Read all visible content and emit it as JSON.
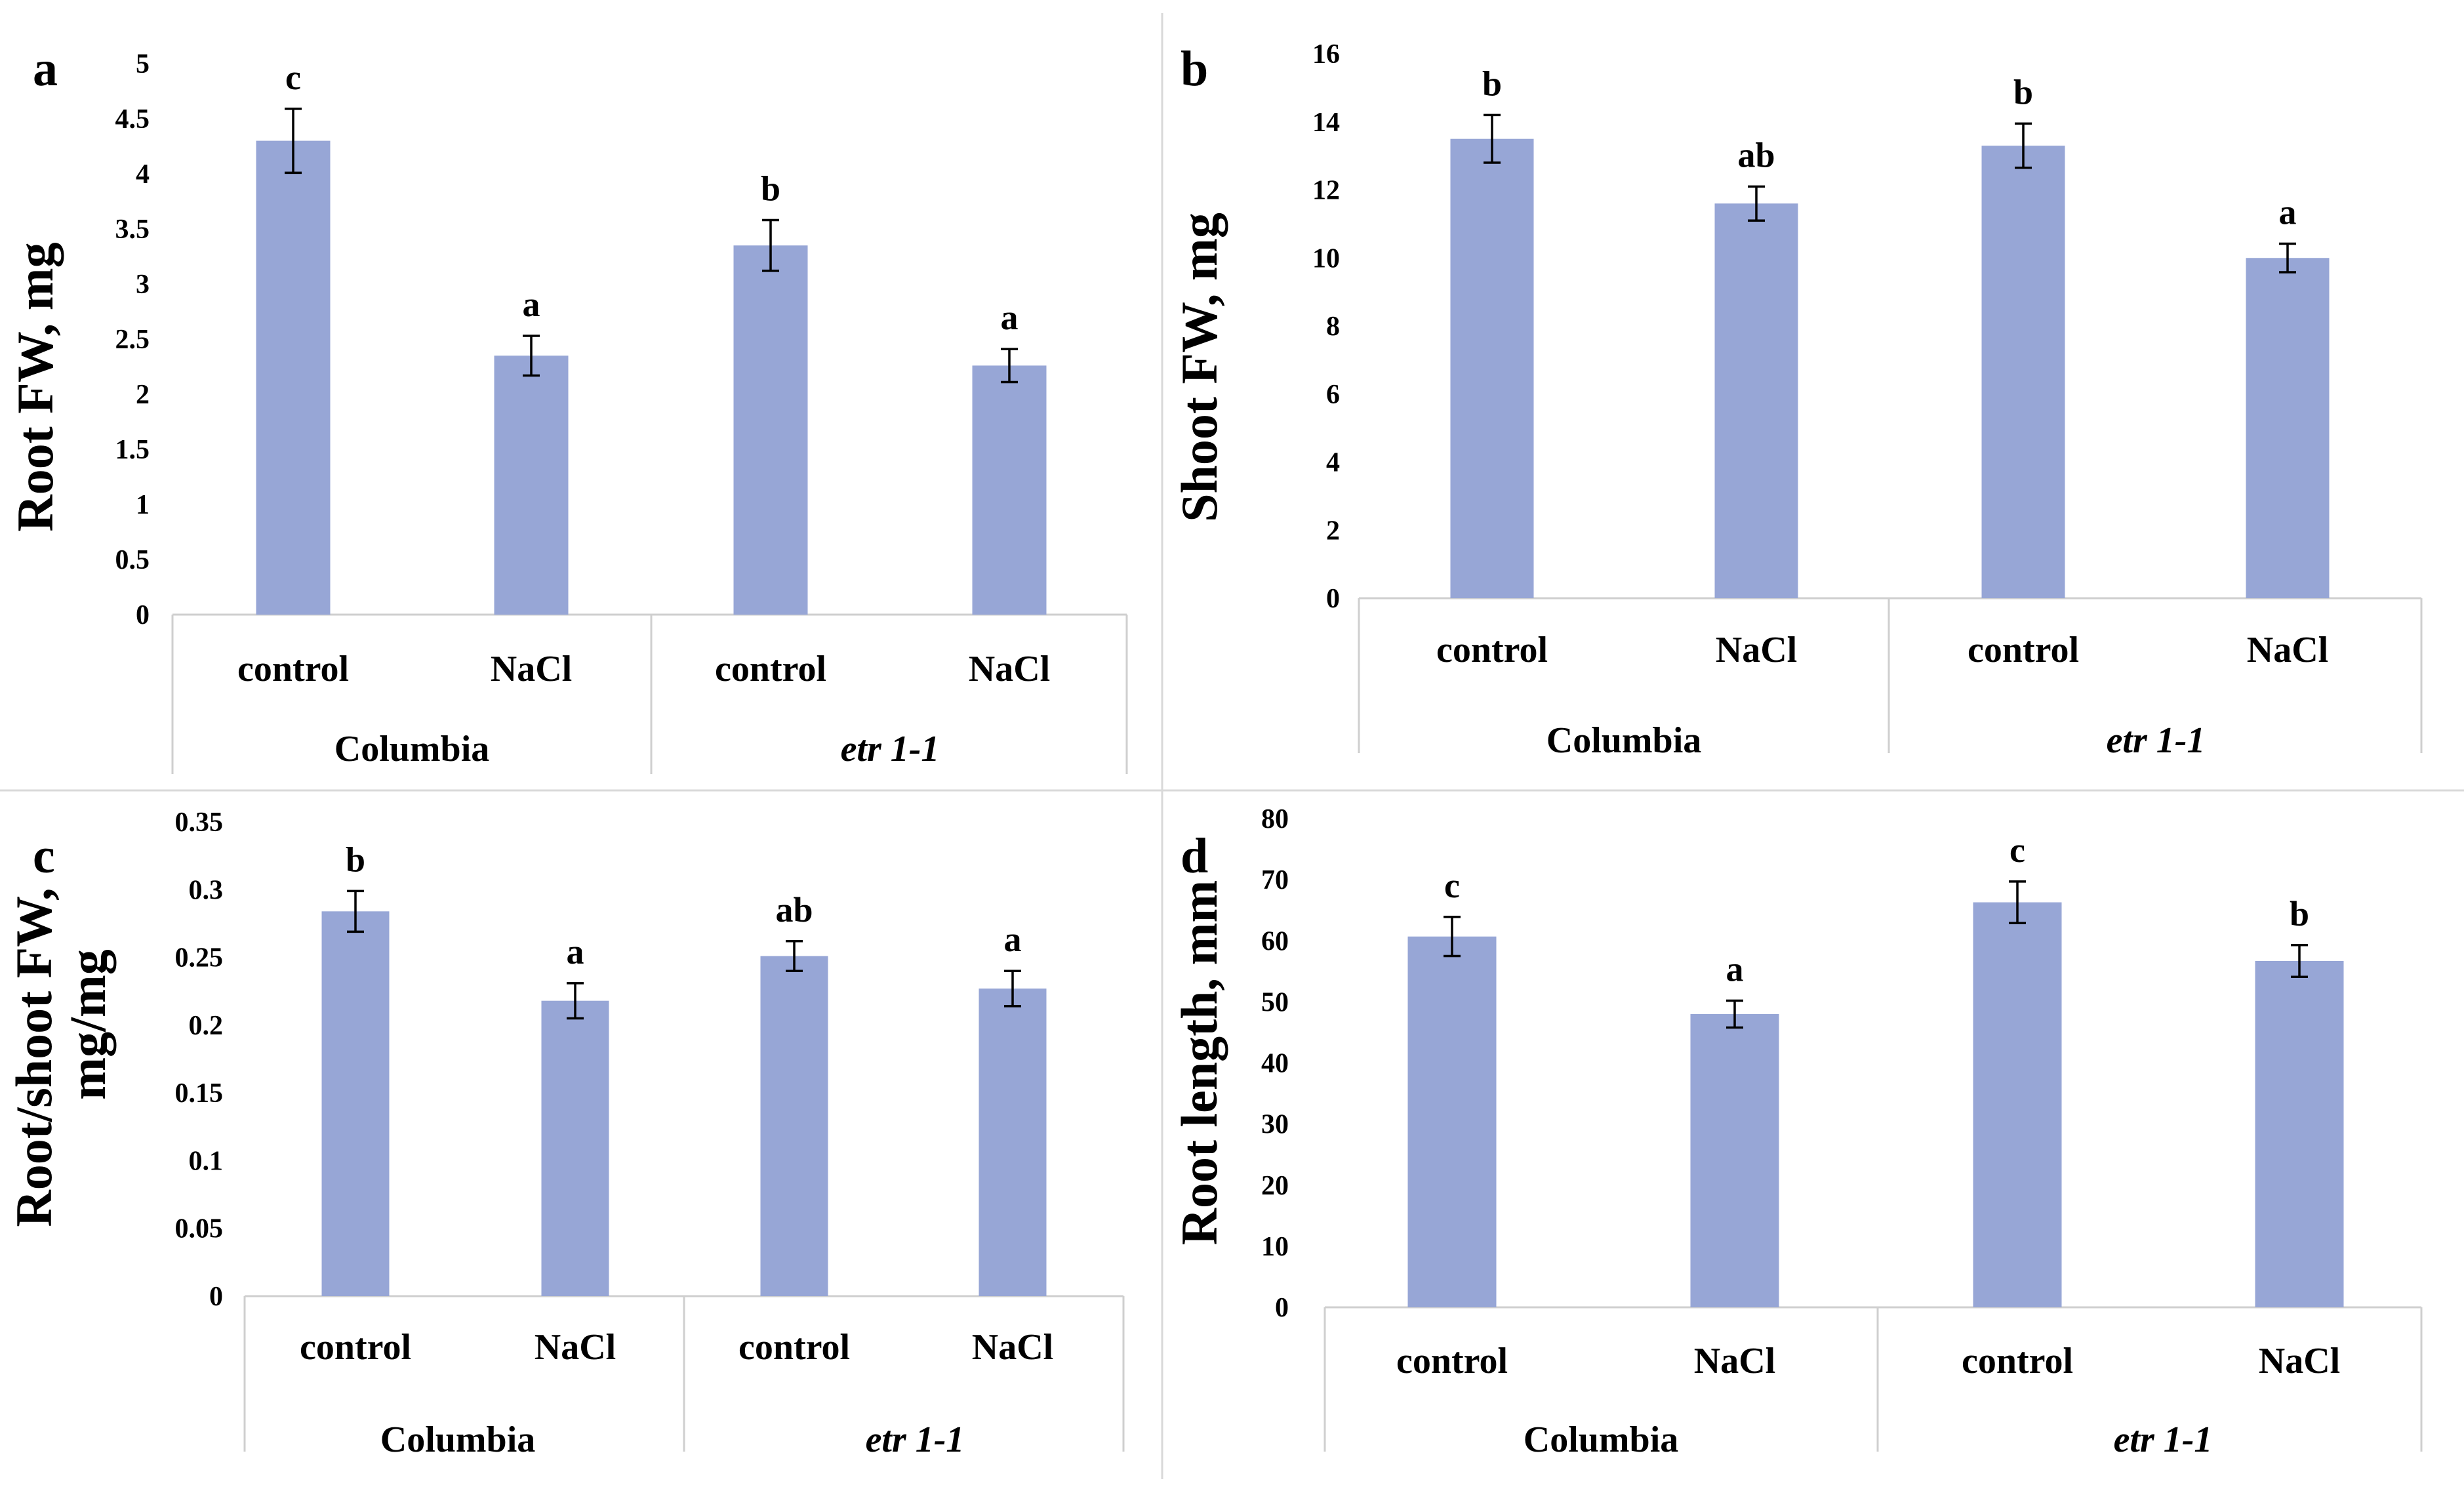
{
  "bar_color": "#97a6d6",
  "chart_data": [
    {
      "type": "bar",
      "panel": "a",
      "ylabel": "Root FW, mg",
      "ylim": [
        0,
        5
      ],
      "yticks": [
        "0",
        "0.5",
        "1",
        "1.5",
        "2",
        "2.5",
        "3",
        "3.5",
        "4",
        "4.5",
        "5"
      ],
      "categories": [
        "control",
        "NaCl",
        "control",
        "NaCl"
      ],
      "groups": [
        "Columbia",
        "etr 1-1"
      ],
      "values": [
        4.3,
        2.35,
        3.35,
        2.26
      ],
      "errors": [
        0.29,
        0.18,
        0.23,
        0.15
      ],
      "significance": [
        "c",
        "a",
        "b",
        "a"
      ]
    },
    {
      "type": "bar",
      "panel": "b",
      "ylabel": "Shoot FW, mg",
      "ylim": [
        0,
        16
      ],
      "yticks": [
        "0",
        "2",
        "4",
        "6",
        "8",
        "10",
        "12",
        "14",
        "16"
      ],
      "categories": [
        "control",
        "NaCl",
        "control",
        "NaCl"
      ],
      "groups": [
        "Columbia",
        "etr 1-1"
      ],
      "values": [
        13.5,
        11.6,
        13.3,
        10.0
      ],
      "errors": [
        0.7,
        0.5,
        0.65,
        0.42
      ],
      "significance": [
        "b",
        "ab",
        "b",
        "a"
      ]
    },
    {
      "type": "bar",
      "panel": "c",
      "ylabel_lines": [
        "Root/shoot FW,",
        "mg/mg"
      ],
      "ylim": [
        0,
        0.35
      ],
      "yticks": [
        "0",
        "0.05",
        "0.1",
        "0.15",
        "0.2",
        "0.25",
        "0.3",
        "0.35"
      ],
      "categories": [
        "control",
        "NaCl",
        "control",
        "NaCl"
      ],
      "groups": [
        "Columbia",
        "etr 1-1"
      ],
      "values": [
        0.284,
        0.218,
        0.251,
        0.227
      ],
      "errors": [
        0.015,
        0.013,
        0.011,
        0.013
      ],
      "significance": [
        "b",
        "a",
        "ab",
        "a"
      ]
    },
    {
      "type": "bar",
      "panel": "d",
      "ylabel": "Root length, mm",
      "ylim": [
        0,
        80
      ],
      "yticks": [
        "0",
        "10",
        "20",
        "30",
        "40",
        "50",
        "60",
        "70",
        "80"
      ],
      "categories": [
        "control",
        "NaCl",
        "control",
        "NaCl"
      ],
      "groups": [
        "Columbia",
        "etr 1-1"
      ],
      "values": [
        60.7,
        48.0,
        66.3,
        56.7
      ],
      "errors": [
        3.2,
        2.2,
        3.4,
        2.6
      ],
      "significance": [
        "c",
        "a",
        "c",
        "b"
      ]
    }
  ]
}
